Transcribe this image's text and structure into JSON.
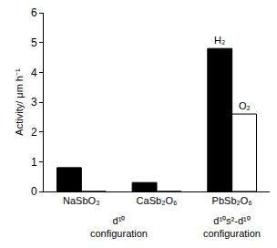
{
  "chart_data": {
    "type": "bar",
    "y_label": "Activity/ μm h⁻¹",
    "categories": [
      "NaSbO₃",
      "CaSb₂O₆",
      "PbSb₂O₆"
    ],
    "series": [
      {
        "name": "H₂",
        "color": "#000000",
        "values": [
          0.8,
          0.3,
          4.8
        ]
      },
      {
        "name": "O₂",
        "color": "#ffffff",
        "values": [
          0,
          0,
          2.6
        ]
      }
    ],
    "groups": [
      {
        "label": "d¹⁰ configuration",
        "categories": [
          "NaSbO₃",
          "CaSb₂O₆"
        ]
      },
      {
        "label": "d¹⁰s²-d¹⁰ configuration",
        "categories": [
          "PbSb₂O₆"
        ]
      }
    ],
    "ylim": [
      0,
      6
    ],
    "yticks": [
      0,
      1,
      2,
      3,
      4,
      5,
      6
    ],
    "grid": false
  }
}
